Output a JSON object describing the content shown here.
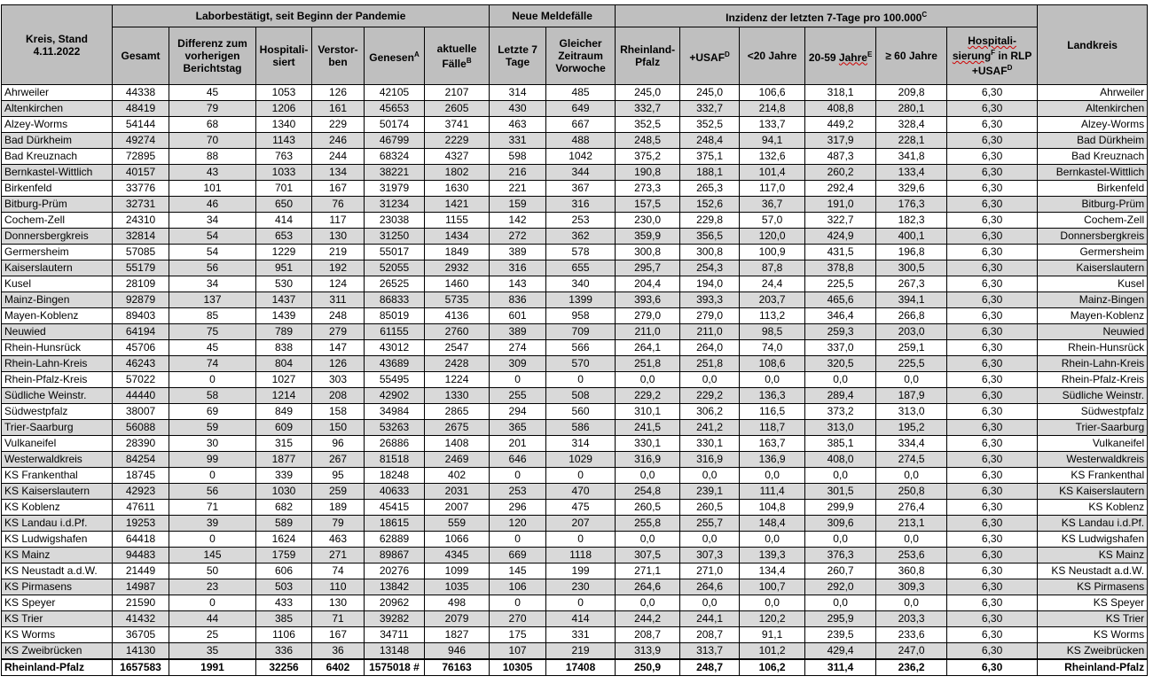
{
  "header": {
    "kreis_label": "Kreis, Stand 4.11.2022",
    "group_labor": "Laborbestätigt, seit Beginn der Pandemie",
    "group_neu": "Neue Meldefälle",
    "group_inzidenz": "Inzidenz der letzten 7-Tage pro 100.000",
    "group_inzidenz_sup": "C",
    "landkreis_label": "Landkreis",
    "cols": {
      "gesamt": "Gesamt",
      "differenz": "Differenz zum vorherigen Berichtstag",
      "hospitalisiert": "Hospitali-siert",
      "verstorben": "Verstor-ben",
      "genesen": "Genesen",
      "genesen_sup": "A",
      "aktuelle": "aktuelle Fälle",
      "aktuelle_sup": "B",
      "letzte7": "Letzte 7 Tage",
      "vorwoche": "Gleicher Zeitraum Vorwoche",
      "rlp": "Rheinland-Pfalz",
      "usaf": "+USAF",
      "usaf_sup": "D",
      "u20": "<20 Jahre",
      "j2059_a": "20-59 ",
      "j2059_b": "Jahre",
      "j2059_sup": "E",
      "ue60": "≥ 60 Jahre",
      "hosp_a": "Hospitali-sierung",
      "hosp_sup": "F",
      "hosp_b": " in RLP +USAF",
      "hosp_sup2": "D"
    }
  },
  "rows": [
    [
      "Ahrweiler",
      "44338",
      "45",
      "1053",
      "126",
      "42105",
      "2107",
      "314",
      "485",
      "245,0",
      "245,0",
      "106,6",
      "318,1",
      "209,8",
      "6,30",
      "Ahrweiler"
    ],
    [
      "Altenkirchen",
      "48419",
      "79",
      "1206",
      "161",
      "45653",
      "2605",
      "430",
      "649",
      "332,7",
      "332,7",
      "214,8",
      "408,8",
      "280,1",
      "6,30",
      "Altenkirchen"
    ],
    [
      "Alzey-Worms",
      "54144",
      "68",
      "1340",
      "229",
      "50174",
      "3741",
      "463",
      "667",
      "352,5",
      "352,5",
      "133,7",
      "449,2",
      "328,4",
      "6,30",
      "Alzey-Worms"
    ],
    [
      "Bad Dürkheim",
      "49274",
      "70",
      "1143",
      "246",
      "46799",
      "2229",
      "331",
      "488",
      "248,5",
      "248,4",
      "94,1",
      "317,9",
      "228,1",
      "6,30",
      "Bad Dürkheim"
    ],
    [
      "Bad Kreuznach",
      "72895",
      "88",
      "763",
      "244",
      "68324",
      "4327",
      "598",
      "1042",
      "375,2",
      "375,1",
      "132,6",
      "487,3",
      "341,8",
      "6,30",
      "Bad Kreuznach"
    ],
    [
      "Bernkastel-Wittlich",
      "40157",
      "43",
      "1033",
      "134",
      "38221",
      "1802",
      "216",
      "344",
      "190,8",
      "188,1",
      "101,4",
      "260,2",
      "133,4",
      "6,30",
      "Bernkastel-Wittlich"
    ],
    [
      "Birkenfeld",
      "33776",
      "101",
      "701",
      "167",
      "31979",
      "1630",
      "221",
      "367",
      "273,3",
      "265,3",
      "117,0",
      "292,4",
      "329,6",
      "6,30",
      "Birkenfeld"
    ],
    [
      "Bitburg-Prüm",
      "32731",
      "46",
      "650",
      "76",
      "31234",
      "1421",
      "159",
      "316",
      "157,5",
      "152,6",
      "36,7",
      "191,0",
      "176,3",
      "6,30",
      "Bitburg-Prüm"
    ],
    [
      "Cochem-Zell",
      "24310",
      "34",
      "414",
      "117",
      "23038",
      "1155",
      "142",
      "253",
      "230,0",
      "229,8",
      "57,0",
      "322,7",
      "182,3",
      "6,30",
      "Cochem-Zell"
    ],
    [
      "Donnersbergkreis",
      "32814",
      "54",
      "653",
      "130",
      "31250",
      "1434",
      "272",
      "362",
      "359,9",
      "356,5",
      "120,0",
      "424,9",
      "400,1",
      "6,30",
      "Donnersbergkreis"
    ],
    [
      "Germersheim",
      "57085",
      "54",
      "1229",
      "219",
      "55017",
      "1849",
      "389",
      "578",
      "300,8",
      "300,8",
      "100,9",
      "431,5",
      "196,8",
      "6,30",
      "Germersheim"
    ],
    [
      "Kaiserslautern",
      "55179",
      "56",
      "951",
      "192",
      "52055",
      "2932",
      "316",
      "655",
      "295,7",
      "254,3",
      "87,8",
      "378,8",
      "300,5",
      "6,30",
      "Kaiserslautern"
    ],
    [
      "Kusel",
      "28109",
      "34",
      "530",
      "124",
      "26525",
      "1460",
      "143",
      "340",
      "204,4",
      "194,0",
      "24,4",
      "225,5",
      "267,3",
      "6,30",
      "Kusel"
    ],
    [
      "Mainz-Bingen",
      "92879",
      "137",
      "1437",
      "311",
      "86833",
      "5735",
      "836",
      "1399",
      "393,6",
      "393,3",
      "203,7",
      "465,6",
      "394,1",
      "6,30",
      "Mainz-Bingen"
    ],
    [
      "Mayen-Koblenz",
      "89403",
      "85",
      "1439",
      "248",
      "85019",
      "4136",
      "601",
      "958",
      "279,0",
      "279,0",
      "113,2",
      "346,4",
      "266,8",
      "6,30",
      "Mayen-Koblenz"
    ],
    [
      "Neuwied",
      "64194",
      "75",
      "789",
      "279",
      "61155",
      "2760",
      "389",
      "709",
      "211,0",
      "211,0",
      "98,5",
      "259,3",
      "203,0",
      "6,30",
      "Neuwied"
    ],
    [
      "Rhein-Hunsrück",
      "45706",
      "45",
      "838",
      "147",
      "43012",
      "2547",
      "274",
      "566",
      "264,1",
      "264,0",
      "74,0",
      "337,0",
      "259,1",
      "6,30",
      "Rhein-Hunsrück"
    ],
    [
      "Rhein-Lahn-Kreis",
      "46243",
      "74",
      "804",
      "126",
      "43689",
      "2428",
      "309",
      "570",
      "251,8",
      "251,8",
      "108,6",
      "320,5",
      "225,5",
      "6,30",
      "Rhein-Lahn-Kreis"
    ],
    [
      "Rhein-Pfalz-Kreis",
      "57022",
      "0",
      "1027",
      "303",
      "55495",
      "1224",
      "0",
      "0",
      "0,0",
      "0,0",
      "0,0",
      "0,0",
      "0,0",
      "6,30",
      "Rhein-Pfalz-Kreis"
    ],
    [
      "Südliche Weinstr.",
      "44440",
      "58",
      "1214",
      "208",
      "42902",
      "1330",
      "255",
      "508",
      "229,2",
      "229,2",
      "136,3",
      "289,4",
      "187,9",
      "6,30",
      "Südliche Weinstr."
    ],
    [
      "Südwestpfalz",
      "38007",
      "69",
      "849",
      "158",
      "34984",
      "2865",
      "294",
      "560",
      "310,1",
      "306,2",
      "116,5",
      "373,2",
      "313,0",
      "6,30",
      "Südwestpfalz"
    ],
    [
      "Trier-Saarburg",
      "56088",
      "59",
      "609",
      "150",
      "53263",
      "2675",
      "365",
      "586",
      "241,5",
      "241,2",
      "118,7",
      "313,0",
      "195,2",
      "6,30",
      "Trier-Saarburg"
    ],
    [
      "Vulkaneifel",
      "28390",
      "30",
      "315",
      "96",
      "26886",
      "1408",
      "201",
      "314",
      "330,1",
      "330,1",
      "163,7",
      "385,1",
      "334,4",
      "6,30",
      "Vulkaneifel"
    ],
    [
      "Westerwaldkreis",
      "84254",
      "99",
      "1877",
      "267",
      "81518",
      "2469",
      "646",
      "1029",
      "316,9",
      "316,9",
      "136,9",
      "408,0",
      "274,5",
      "6,30",
      "Westerwaldkreis"
    ],
    [
      "KS Frankenthal",
      "18745",
      "0",
      "339",
      "95",
      "18248",
      "402",
      "0",
      "0",
      "0,0",
      "0,0",
      "0,0",
      "0,0",
      "0,0",
      "6,30",
      "KS Frankenthal"
    ],
    [
      "KS Kaiserslautern",
      "42923",
      "56",
      "1030",
      "259",
      "40633",
      "2031",
      "253",
      "470",
      "254,8",
      "239,1",
      "111,4",
      "301,5",
      "250,8",
      "6,30",
      "KS Kaiserslautern"
    ],
    [
      "KS Koblenz",
      "47611",
      "71",
      "682",
      "189",
      "45415",
      "2007",
      "296",
      "475",
      "260,5",
      "260,5",
      "104,8",
      "299,9",
      "276,4",
      "6,30",
      "KS Koblenz"
    ],
    [
      "KS Landau i.d.Pf.",
      "19253",
      "39",
      "589",
      "79",
      "18615",
      "559",
      "120",
      "207",
      "255,8",
      "255,7",
      "148,4",
      "309,6",
      "213,1",
      "6,30",
      "KS Landau i.d.Pf."
    ],
    [
      "KS Ludwigshafen",
      "64418",
      "0",
      "1624",
      "463",
      "62889",
      "1066",
      "0",
      "0",
      "0,0",
      "0,0",
      "0,0",
      "0,0",
      "0,0",
      "6,30",
      "KS Ludwigshafen"
    ],
    [
      "KS Mainz",
      "94483",
      "145",
      "1759",
      "271",
      "89867",
      "4345",
      "669",
      "1118",
      "307,5",
      "307,3",
      "139,3",
      "376,3",
      "253,6",
      "6,30",
      "KS Mainz"
    ],
    [
      "KS Neustadt a.d.W.",
      "21449",
      "50",
      "606",
      "74",
      "20276",
      "1099",
      "145",
      "199",
      "271,1",
      "271,0",
      "134,4",
      "260,7",
      "360,8",
      "6,30",
      "KS Neustadt a.d.W."
    ],
    [
      "KS Pirmasens",
      "14987",
      "23",
      "503",
      "110",
      "13842",
      "1035",
      "106",
      "230",
      "264,6",
      "264,6",
      "100,7",
      "292,0",
      "309,3",
      "6,30",
      "KS Pirmasens"
    ],
    [
      "KS Speyer",
      "21590",
      "0",
      "433",
      "130",
      "20962",
      "498",
      "0",
      "0",
      "0,0",
      "0,0",
      "0,0",
      "0,0",
      "0,0",
      "6,30",
      "KS Speyer"
    ],
    [
      "KS Trier",
      "41432",
      "44",
      "385",
      "71",
      "39282",
      "2079",
      "270",
      "414",
      "244,2",
      "244,1",
      "120,2",
      "295,9",
      "203,3",
      "6,30",
      "KS Trier"
    ],
    [
      "KS Worms",
      "36705",
      "25",
      "1106",
      "167",
      "34711",
      "1827",
      "175",
      "331",
      "208,7",
      "208,7",
      "91,1",
      "239,5",
      "233,6",
      "6,30",
      "KS Worms"
    ],
    [
      "KS Zweibrücken",
      "14130",
      "35",
      "336",
      "36",
      "13148",
      "946",
      "107",
      "219",
      "313,9",
      "313,7",
      "101,2",
      "429,4",
      "247,0",
      "6,30",
      "KS Zweibrücken"
    ]
  ],
  "total": [
    "Rheinland-Pfalz",
    "1657583",
    "1991",
    "32256",
    "6402",
    "1575018 #",
    "76163",
    "10305",
    "17408",
    "250,9",
    "248,7",
    "106,2",
    "311,4",
    "236,2",
    "6,30",
    "Rheinland-Pfalz"
  ],
  "colors": {
    "header_bg": "#bfbfbf",
    "alt_row_bg": "#d9d9d9",
    "border": "#000000",
    "spellcheck": "#d00000"
  }
}
